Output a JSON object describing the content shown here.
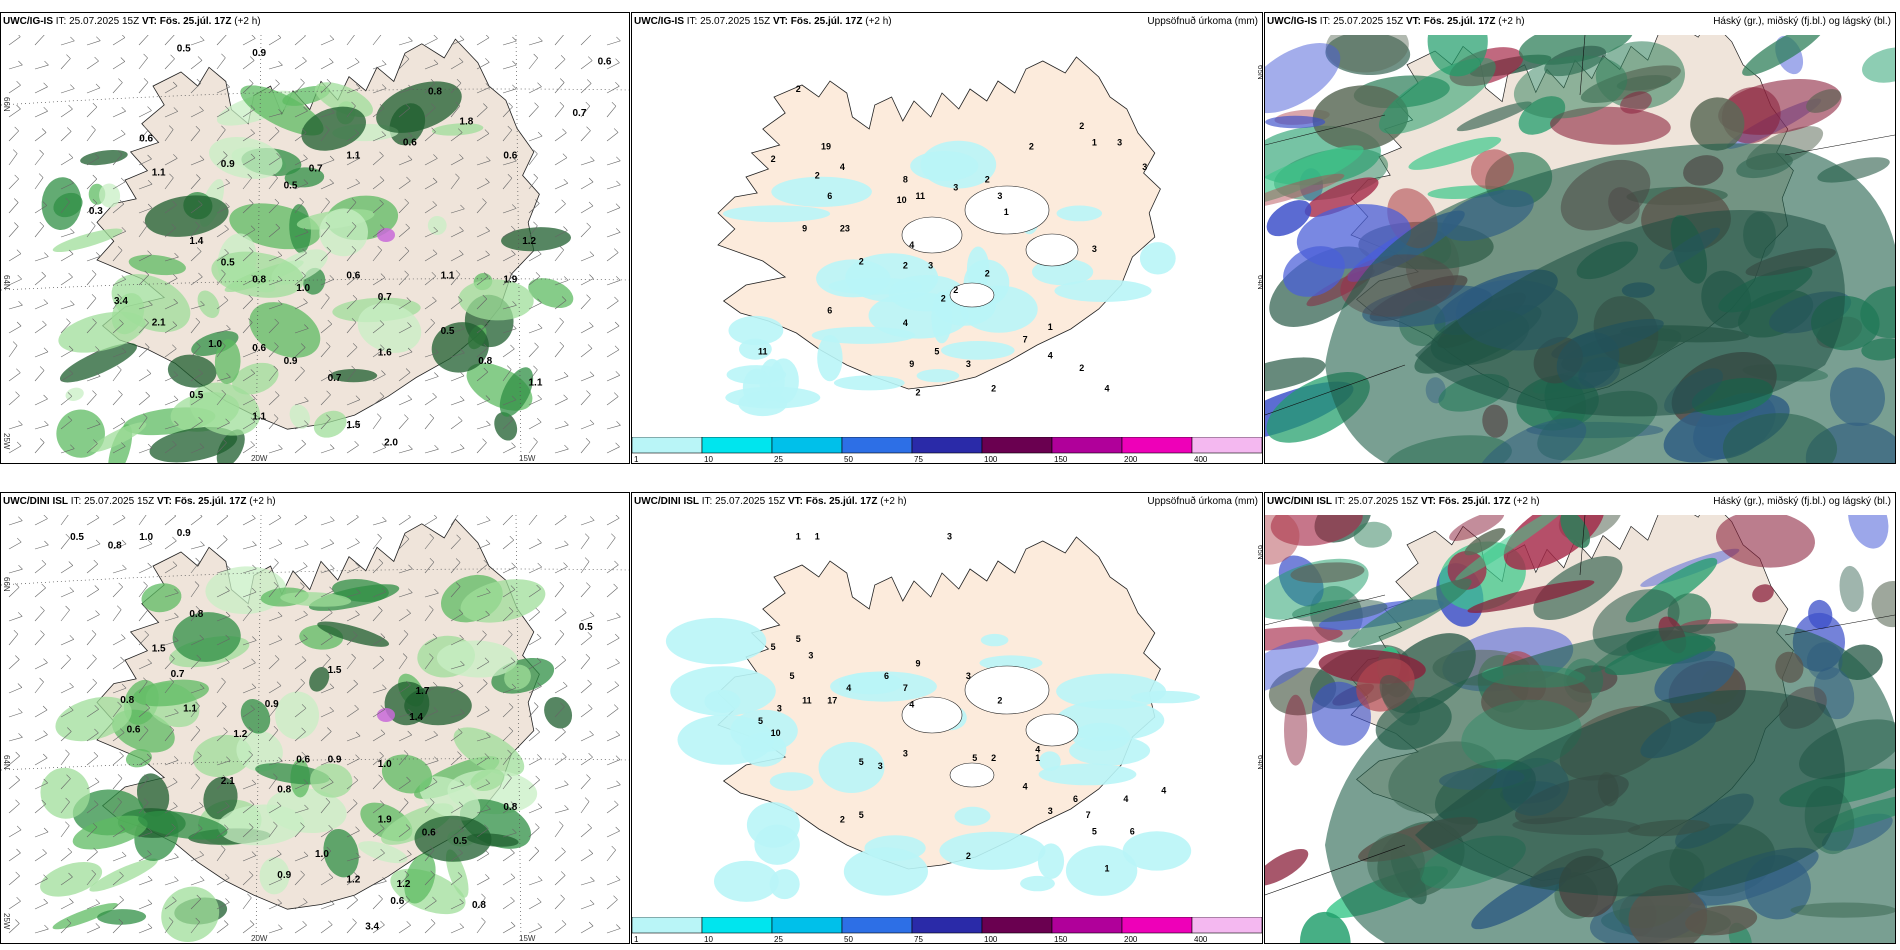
{
  "rows": [
    {
      "model": "UWC/IG-IS",
      "it_label": "IT:",
      "it_value": "25.07.2025 15Z",
      "vt_label": "VT:",
      "vt_value": "Fös. 25.júl. 17Z",
      "lead": "(+2 h)"
    },
    {
      "model": "UWC/DINI ISL",
      "it_label": "IT:",
      "it_value": "25.07.2025 15Z",
      "vt_label": "VT:",
      "vt_value": "Fös. 25.júl. 17Z",
      "lead": "(+2 h)"
    }
  ],
  "panels": {
    "precip_title": "Uppsöfnuð úrkoma (mm)",
    "cloud_title": "Háský (gr.), miðský (fj.bl.) og lágský (bl.)"
  },
  "axes": {
    "lat_66": "66N",
    "lat_64": "64N",
    "lat_65": "65N",
    "lon_25": "25W",
    "lon_20": "20W",
    "lon_15": "15W"
  },
  "colorbar": {
    "ticks": [
      "1",
      "10",
      "25",
      "50",
      "75",
      "100",
      "150",
      "200",
      "400"
    ],
    "colors": [
      "#b9f5f7",
      "#00e5ee",
      "#00c0ea",
      "#2d6fe6",
      "#2a2aa8",
      "#6a0050",
      "#b0009a",
      "#ee00b8",
      "#f4b8f0"
    ]
  },
  "labels": {
    "r1_wind": [
      "0.5",
      "0.9",
      "0.6",
      "1.1",
      "0.9",
      "0.5",
      "0.7",
      "1.1",
      "0.6",
      "0.8",
      "1.8",
      "0.6",
      "0.7",
      "0.3",
      "1.4",
      "0.5",
      "0.8",
      "1.0",
      "0.6",
      "0.7",
      "1.1",
      "1.9",
      "1.2",
      "3.4",
      "2.1",
      "1.0",
      "0.6",
      "0.9",
      "0.7",
      "1.6",
      "0.5",
      "0.8",
      "1.1",
      "1.5",
      "2.0",
      "1.1",
      "0.5",
      "0.6"
    ],
    "r1_precip": [
      "2",
      "19",
      "2",
      "4",
      "2",
      "6",
      "9",
      "23",
      "10",
      "11",
      "8",
      "3",
      "2",
      "1",
      "2",
      "1",
      "3",
      "2",
      "3",
      "3",
      "2",
      "2",
      "4",
      "3",
      "2",
      "6",
      "2",
      "2",
      "4",
      "5",
      "7",
      "3",
      "4",
      "2",
      "4",
      "2",
      "11",
      "9",
      "3",
      "2",
      "1"
    ],
    "r2_wind": [
      "0.5",
      "0.8",
      "1.0",
      "0.9",
      "0.8",
      "1.5",
      "0.7",
      "0.8",
      "1.1",
      "0.6",
      "1.2",
      "0.9",
      "1.5",
      "1.7",
      "1.4",
      "0.6",
      "0.9",
      "1.0",
      "2.1",
      "0.8",
      "1.9",
      "0.6",
      "0.5",
      "0.8",
      "1.0",
      "0.9",
      "1.2",
      "0.6",
      "0.8",
      "0.5",
      "3.4",
      "1.2"
    ],
    "r2_precip": [
      "1",
      "1",
      "3",
      "5",
      "5",
      "3",
      "5",
      "3",
      "5",
      "10",
      "11",
      "17",
      "4",
      "6",
      "9",
      "7",
      "4",
      "3",
      "2",
      "5",
      "2",
      "1",
      "5",
      "3",
      "3",
      "4",
      "6",
      "7",
      "3",
      "5",
      "6",
      "4",
      "4",
      "1",
      "2",
      "2",
      "5",
      "4"
    ]
  }
}
